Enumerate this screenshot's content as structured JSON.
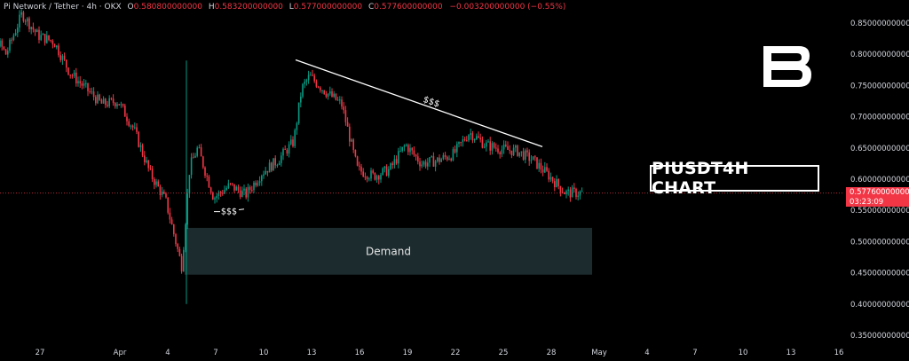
{
  "header": {
    "symbol": "Pi Network / Tether · 4h · OKX",
    "o_label": "O",
    "o_value": "0.580800000000",
    "h_label": "H",
    "h_value": "0.583200000000",
    "l_label": "L",
    "l_value": "0.577000000000",
    "c_label": "C",
    "c_value": "0.577600000000",
    "change": "−0.003200000000 (−0.55%)"
  },
  "title_box": "PIUSDT4H CHART",
  "logo_icon": "b-letter-logo-icon",
  "current_price": {
    "value": "0.577600000000",
    "countdown": "03:23:09"
  },
  "colors": {
    "up": "#089981",
    "down": "#f23645",
    "background": "#000000",
    "demand_zone": "#1c2b2e"
  },
  "chart_data": {
    "type": "candlestick",
    "title": "",
    "x_ticks": [
      "27",
      "Apr",
      "4",
      "7",
      "10",
      "13",
      "16",
      "19",
      "22",
      "25",
      "28",
      "May",
      "4",
      "7",
      "10",
      "13",
      "16"
    ],
    "y_ticks": [
      "0.850000000000",
      "0.800000000000",
      "0.750000000000",
      "0.700000000000",
      "0.650000000000",
      "0.600000000000",
      "0.550000000000",
      "0.500000000000",
      "0.450000000000",
      "0.400000000000",
      "0.350000000000"
    ],
    "ylim": [
      0.333,
      0.876
    ],
    "price_path": [
      [
        "Mar 23",
        0.875
      ],
      [
        "Mar 24",
        0.84
      ],
      [
        "Mar 25",
        0.8
      ],
      [
        "Mar 26",
        0.865
      ],
      [
        "Mar 27",
        0.83
      ],
      [
        "Mar 28",
        0.82
      ],
      [
        "Mar 29",
        0.77
      ],
      [
        "Mar 30",
        0.745
      ],
      [
        "Mar 31",
        0.72
      ],
      [
        "Apr 1",
        0.725
      ],
      [
        "Apr 2",
        0.68
      ],
      [
        "Apr 3",
        0.61
      ],
      [
        "Apr 4",
        0.565
      ],
      [
        "Apr 5",
        0.46
      ],
      [
        "Apr 5",
        0.62
      ],
      [
        "Apr 6",
        0.65
      ],
      [
        "Apr 7",
        0.57
      ],
      [
        "Apr 8",
        0.59
      ],
      [
        "Apr 9",
        0.575
      ],
      [
        "Apr 10",
        0.61
      ],
      [
        "Apr 11",
        0.63
      ],
      [
        "Apr 12",
        0.66
      ],
      [
        "Apr 12",
        0.745
      ],
      [
        "Apr 13",
        0.765
      ],
      [
        "Apr 14",
        0.74
      ],
      [
        "Apr 15",
        0.72
      ],
      [
        "Apr 16",
        0.615
      ],
      [
        "Apr 17",
        0.605
      ],
      [
        "Apr 18",
        0.615
      ],
      [
        "Apr 19",
        0.655
      ],
      [
        "Apr 20",
        0.625
      ],
      [
        "Apr 21",
        0.63
      ],
      [
        "Apr 22",
        0.64
      ],
      [
        "Apr 23",
        0.675
      ],
      [
        "Apr 24",
        0.655
      ],
      [
        "Apr 25",
        0.648
      ],
      [
        "Apr 26",
        0.645
      ],
      [
        "Apr 27",
        0.63
      ],
      [
        "Apr 28",
        0.605
      ],
      [
        "Apr 29",
        0.578
      ],
      [
        "Apr 30",
        0.578
      ]
    ],
    "annotations": {
      "trendline": {
        "from": [
          "Apr 12",
          0.791
        ],
        "to": [
          "Apr 27",
          0.652
        ],
        "label": "$$$"
      },
      "liquidity_line": {
        "from": [
          "Apr 7",
          0.555
        ],
        "to": [
          "Apr 8",
          0.558
        ],
        "label": "$$$"
      },
      "demand_zone": {
        "x_from": "Apr 5",
        "x_to": "May 1",
        "y_from": 0.447,
        "y_to": 0.522,
        "label": "Demand"
      }
    },
    "current_price_line": 0.5776,
    "grid": false
  }
}
